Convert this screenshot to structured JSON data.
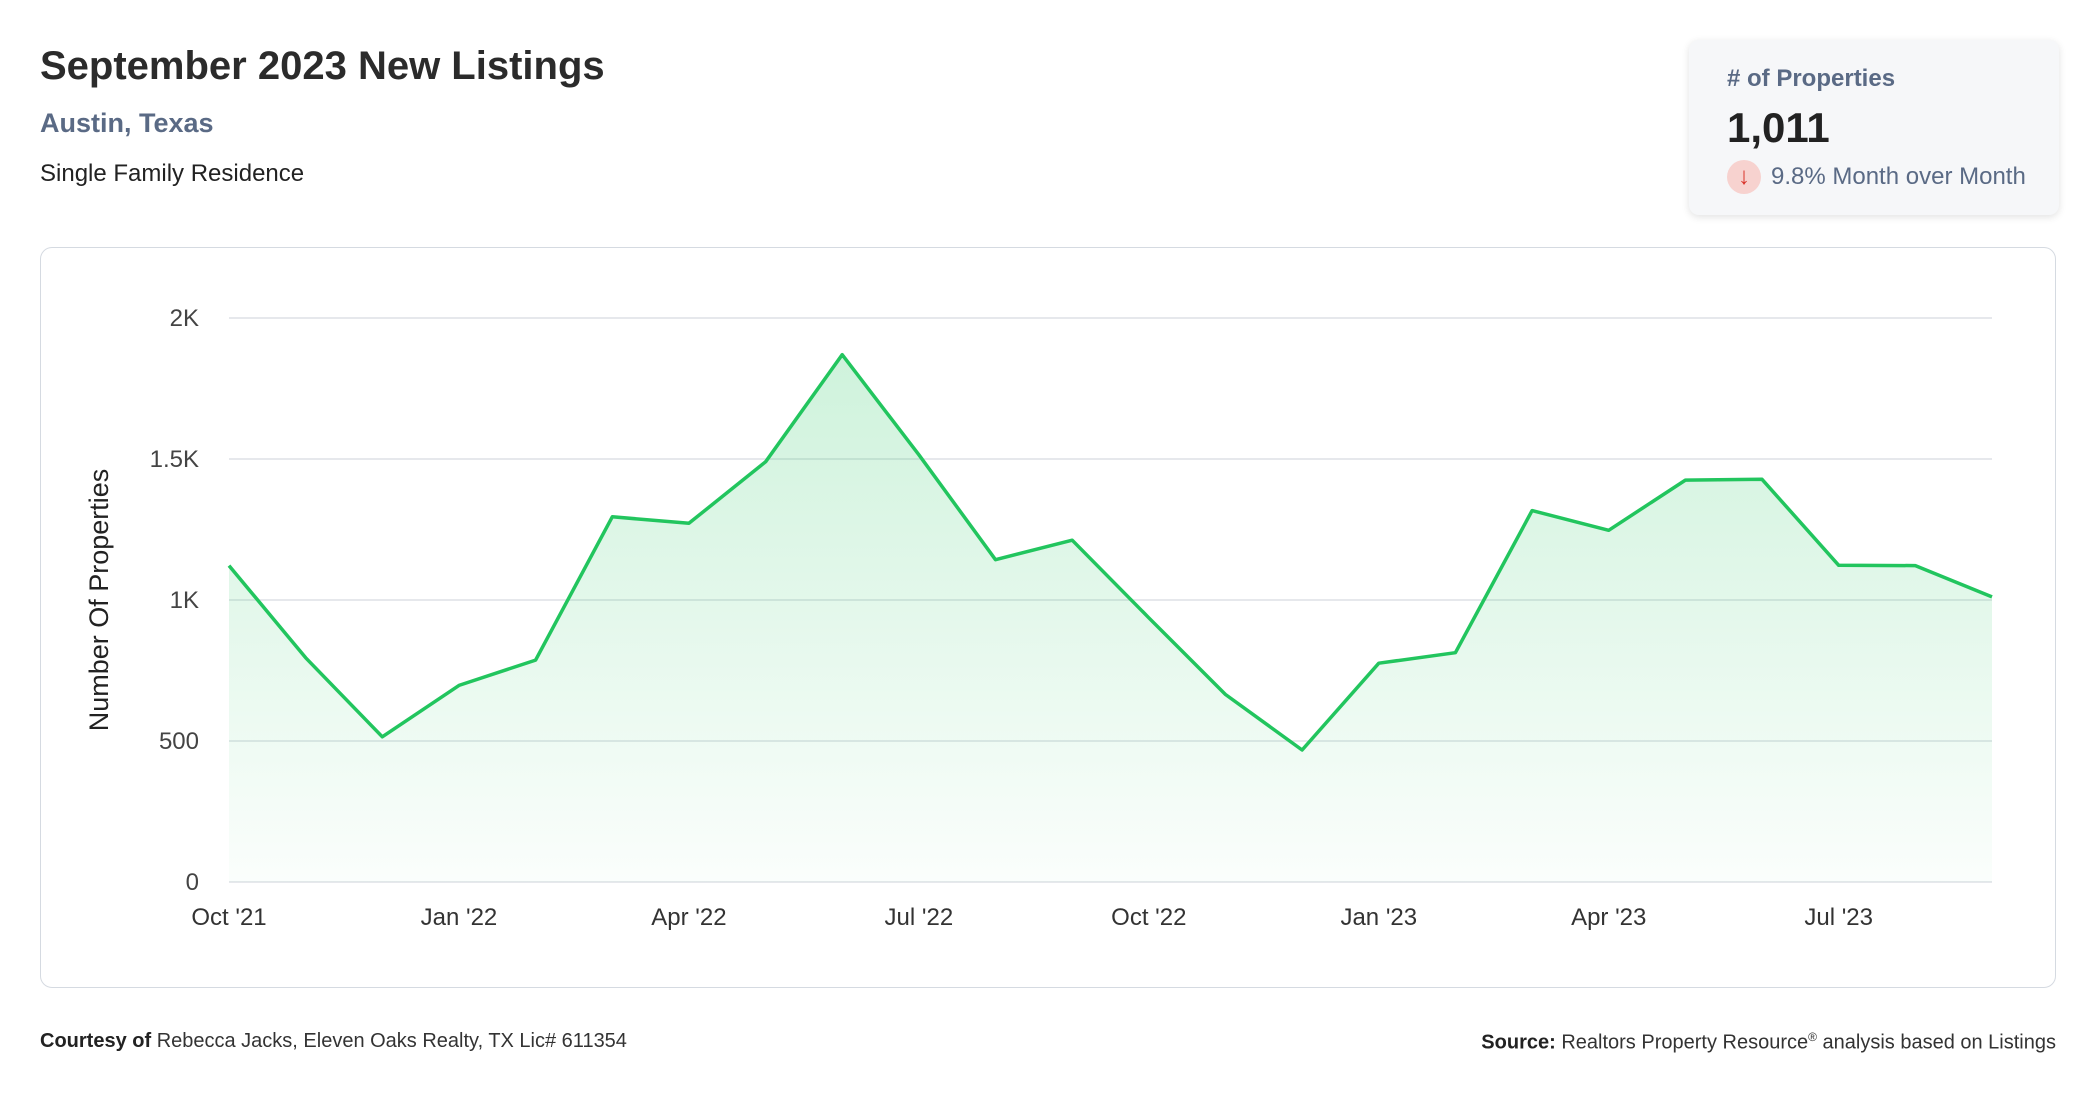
{
  "header": {
    "title": "September 2023 New Listings",
    "location": "Austin, Texas",
    "property_type": "Single Family Residence"
  },
  "kpi": {
    "label": "# of Properties",
    "value": "1,011",
    "change_text": "9.8% Month over Month",
    "direction_icon": "arrow-down-icon",
    "negative_color": "#d9342b"
  },
  "footer": {
    "courtesy_label": "Courtesy of",
    "courtesy_text": "Rebecca Jacks, Eleven Oaks Realty, TX Lic# 611354",
    "source_label": "Source:",
    "source_text_1": "Realtors Property Resource",
    "source_mark": "®",
    "source_text_2": " analysis based on Listings"
  },
  "chart_data": {
    "type": "area",
    "title": "",
    "xlabel": "",
    "ylabel": "Number Of Properties",
    "ylim": [
      0,
      2000
    ],
    "y_ticks": [
      0,
      500,
      1000,
      1500,
      2000
    ],
    "y_tick_labels": [
      "0",
      "500",
      "1K",
      "1.5K",
      "2K"
    ],
    "x_tick_labels": [
      "Oct '21",
      "Jan '22",
      "Apr '22",
      "Jul '22",
      "Oct '22",
      "Jan '23",
      "Apr '23",
      "Jul '23"
    ],
    "x": [
      "Oct '21",
      "Nov '21",
      "Dec '21",
      "Jan '22",
      "Feb '22",
      "Mar '22",
      "Apr '22",
      "May '22",
      "Jun '22",
      "Jul '22",
      "Aug '22",
      "Sep '22",
      "Oct '22",
      "Nov '22",
      "Dec '22",
      "Jan '23",
      "Feb '23",
      "Mar '23",
      "Apr '23",
      "May '23",
      "Jun '23",
      "Jul '23",
      "Aug '23",
      "Sep '23"
    ],
    "values": [
      1122,
      795,
      515,
      697,
      787,
      1295,
      1272,
      1490,
      1870,
      1515,
      1143,
      1212,
      937,
      665,
      468,
      776,
      813,
      1317,
      1247,
      1425,
      1428,
      1123,
      1122,
      1011
    ],
    "line_color": "#22c55e",
    "grid": true
  }
}
